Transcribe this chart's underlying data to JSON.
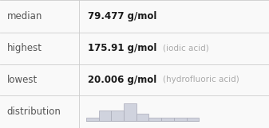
{
  "rows": [
    {
      "label": "median",
      "value": "79.477 g/mol",
      "note": ""
    },
    {
      "label": "highest",
      "value": "175.91 g/mol",
      "note": "(iodic acid)"
    },
    {
      "label": "lowest",
      "value": "20.006 g/mol",
      "note": "(hydrofluoric acid)"
    },
    {
      "label": "distribution",
      "value": "",
      "note": ""
    }
  ],
  "hist_bar_heights": [
    1,
    3,
    3,
    5,
    2,
    1,
    1,
    1,
    1
  ],
  "hist_bar_color": "#d0d3de",
  "hist_bar_edge_color": "#a8aab8",
  "table_line_color": "#cccccc",
  "bg_color": "#f9f9f9",
  "label_color": "#555555",
  "value_color": "#1a1a1a",
  "note_color": "#aaaaaa",
  "label_fontsize": 8.5,
  "value_fontsize": 8.5,
  "note_fontsize": 7.5,
  "col_divider": 0.295,
  "row_tops": [
    1.0,
    0.745,
    0.5,
    0.255,
    0.0
  ]
}
